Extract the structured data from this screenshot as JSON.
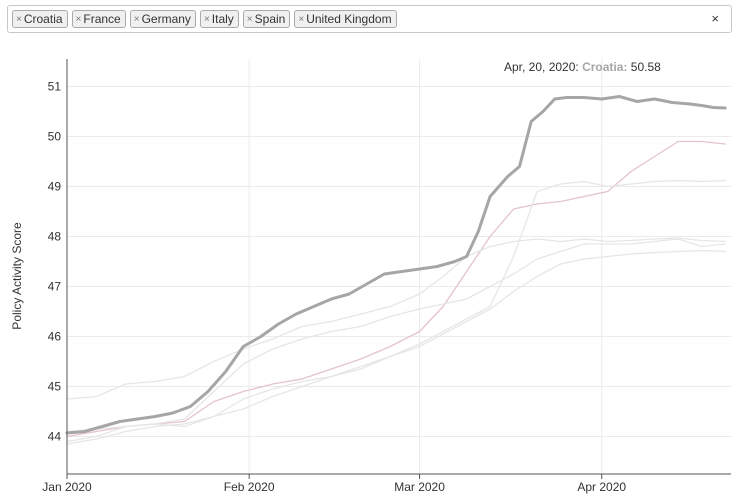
{
  "selector": {
    "tags": [
      "Croatia",
      "France",
      "Germany",
      "Italy",
      "Spain",
      "United Kingdom"
    ],
    "remove_glyph": "×",
    "clear_glyph": "×"
  },
  "tooltip": {
    "date": "Apr, 20, 2020:",
    "country": "Croatia",
    "separator": ":",
    "value": "50.58"
  },
  "chart_data": {
    "type": "line",
    "xlabel": "",
    "ylabel": "Policy Activity Score",
    "x_tick_labels": [
      "Jan 2020",
      "Feb 2020",
      "Mar 2020",
      "Apr 2020"
    ],
    "x_ticks": [
      "2020-01-01",
      "2020-02-01",
      "2020-03-01",
      "2020-04-01"
    ],
    "y_ticks": [
      44,
      45,
      46,
      47,
      48,
      49,
      50,
      51
    ],
    "xlim": [
      "2020-01-01",
      "2020-04-23"
    ],
    "ylim": [
      43.25,
      51.55
    ],
    "grid": true,
    "highlight_color": "#a6a6a6",
    "series": [
      {
        "name": "Croatia",
        "color": "#a6a6a6",
        "highlighted": true,
        "points": [
          [
            "2020-01-01",
            44.07
          ],
          [
            "2020-01-04",
            44.1
          ],
          [
            "2020-01-07",
            44.2
          ],
          [
            "2020-01-10",
            44.3
          ],
          [
            "2020-01-13",
            44.35
          ],
          [
            "2020-01-16",
            44.4
          ],
          [
            "2020-01-19",
            44.47
          ],
          [
            "2020-01-22",
            44.6
          ],
          [
            "2020-01-25",
            44.9
          ],
          [
            "2020-01-28",
            45.3
          ],
          [
            "2020-01-31",
            45.8
          ],
          [
            "2020-02-03",
            46.0
          ],
          [
            "2020-02-06",
            46.25
          ],
          [
            "2020-02-09",
            46.45
          ],
          [
            "2020-02-12",
            46.6
          ],
          [
            "2020-02-15",
            46.75
          ],
          [
            "2020-02-18",
            46.85
          ],
          [
            "2020-02-21",
            47.05
          ],
          [
            "2020-02-24",
            47.25
          ],
          [
            "2020-02-27",
            47.3
          ],
          [
            "2020-03-01",
            47.35
          ],
          [
            "2020-03-04",
            47.4
          ],
          [
            "2020-03-07",
            47.5
          ],
          [
            "2020-03-09",
            47.6
          ],
          [
            "2020-03-11",
            48.1
          ],
          [
            "2020-03-13",
            48.8
          ],
          [
            "2020-03-16",
            49.2
          ],
          [
            "2020-03-18",
            49.4
          ],
          [
            "2020-03-20",
            50.3
          ],
          [
            "2020-03-22",
            50.5
          ],
          [
            "2020-03-24",
            50.75
          ],
          [
            "2020-03-26",
            50.78
          ],
          [
            "2020-03-29",
            50.78
          ],
          [
            "2020-04-01",
            50.75
          ],
          [
            "2020-04-04",
            50.8
          ],
          [
            "2020-04-07",
            50.7
          ],
          [
            "2020-04-10",
            50.75
          ],
          [
            "2020-04-13",
            50.68
          ],
          [
            "2020-04-16",
            50.65
          ],
          [
            "2020-04-18",
            50.62
          ],
          [
            "2020-04-20",
            50.58
          ],
          [
            "2020-04-22",
            50.57
          ]
        ]
      },
      {
        "name": "France",
        "color": "#e3c3cc",
        "highlighted": false,
        "points": [
          [
            "2020-01-01",
            44.0
          ],
          [
            "2020-01-06",
            44.1
          ],
          [
            "2020-01-11",
            44.2
          ],
          [
            "2020-01-16",
            44.25
          ],
          [
            "2020-01-21",
            44.3
          ],
          [
            "2020-01-26",
            44.7
          ],
          [
            "2020-01-31",
            44.9
          ],
          [
            "2020-02-05",
            45.05
          ],
          [
            "2020-02-10",
            45.15
          ],
          [
            "2020-02-15",
            45.35
          ],
          [
            "2020-02-20",
            45.55
          ],
          [
            "2020-02-25",
            45.8
          ],
          [
            "2020-03-01",
            46.1
          ],
          [
            "2020-03-05",
            46.6
          ],
          [
            "2020-03-09",
            47.3
          ],
          [
            "2020-03-13",
            48.0
          ],
          [
            "2020-03-17",
            48.55
          ],
          [
            "2020-03-21",
            48.65
          ],
          [
            "2020-03-25",
            48.7
          ],
          [
            "2020-03-29",
            48.8
          ],
          [
            "2020-04-02",
            48.9
          ],
          [
            "2020-04-06",
            49.3
          ],
          [
            "2020-04-10",
            49.6
          ],
          [
            "2020-04-14",
            49.9
          ],
          [
            "2020-04-18",
            49.9
          ],
          [
            "2020-04-22",
            49.85
          ]
        ]
      },
      {
        "name": "Germany",
        "color": "#e6e6e6",
        "highlighted": false,
        "points": [
          [
            "2020-01-01",
            44.75
          ],
          [
            "2020-01-06",
            44.8
          ],
          [
            "2020-01-11",
            45.05
          ],
          [
            "2020-01-16",
            45.1
          ],
          [
            "2020-01-21",
            45.2
          ],
          [
            "2020-01-26",
            45.5
          ],
          [
            "2020-01-31",
            45.75
          ],
          [
            "2020-02-05",
            45.95
          ],
          [
            "2020-02-10",
            46.2
          ],
          [
            "2020-02-15",
            46.3
          ],
          [
            "2020-02-20",
            46.45
          ],
          [
            "2020-02-25",
            46.6
          ],
          [
            "2020-03-01",
            46.85
          ],
          [
            "2020-03-05",
            47.2
          ],
          [
            "2020-03-09",
            47.6
          ],
          [
            "2020-03-13",
            47.8
          ],
          [
            "2020-03-17",
            47.9
          ],
          [
            "2020-03-21",
            47.95
          ],
          [
            "2020-03-25",
            47.9
          ],
          [
            "2020-03-29",
            47.95
          ],
          [
            "2020-04-02",
            47.9
          ],
          [
            "2020-04-06",
            47.92
          ],
          [
            "2020-04-10",
            47.95
          ],
          [
            "2020-04-14",
            47.97
          ],
          [
            "2020-04-18",
            47.92
          ],
          [
            "2020-04-22",
            47.9
          ]
        ]
      },
      {
        "name": "Italy",
        "color": "#e6e6e6",
        "highlighted": false,
        "points": [
          [
            "2020-01-01",
            43.9
          ],
          [
            "2020-01-06",
            44.0
          ],
          [
            "2020-01-11",
            44.2
          ],
          [
            "2020-01-16",
            44.25
          ],
          [
            "2020-01-21",
            44.2
          ],
          [
            "2020-01-26",
            44.4
          ],
          [
            "2020-01-31",
            44.75
          ],
          [
            "2020-02-05",
            44.95
          ],
          [
            "2020-02-10",
            45.1
          ],
          [
            "2020-02-15",
            45.2
          ],
          [
            "2020-02-20",
            45.35
          ],
          [
            "2020-02-25",
            45.6
          ],
          [
            "2020-03-01",
            45.85
          ],
          [
            "2020-03-05",
            46.1
          ],
          [
            "2020-03-09",
            46.35
          ],
          [
            "2020-03-13",
            46.6
          ],
          [
            "2020-03-17",
            47.6
          ],
          [
            "2020-03-21",
            48.9
          ],
          [
            "2020-03-25",
            49.05
          ],
          [
            "2020-03-29",
            49.1
          ],
          [
            "2020-04-02",
            49.0
          ],
          [
            "2020-04-06",
            49.05
          ],
          [
            "2020-04-10",
            49.1
          ],
          [
            "2020-04-14",
            49.12
          ],
          [
            "2020-04-18",
            49.1
          ],
          [
            "2020-04-22",
            49.12
          ]
        ]
      },
      {
        "name": "Spain",
        "color": "#e6e6e6",
        "highlighted": false,
        "points": [
          [
            "2020-01-01",
            44.1
          ],
          [
            "2020-01-06",
            44.15
          ],
          [
            "2020-01-11",
            44.2
          ],
          [
            "2020-01-16",
            44.25
          ],
          [
            "2020-01-21",
            44.35
          ],
          [
            "2020-01-26",
            44.9
          ],
          [
            "2020-01-31",
            45.45
          ],
          [
            "2020-02-05",
            45.75
          ],
          [
            "2020-02-10",
            45.95
          ],
          [
            "2020-02-15",
            46.1
          ],
          [
            "2020-02-20",
            46.2
          ],
          [
            "2020-02-25",
            46.4
          ],
          [
            "2020-03-01",
            46.55
          ],
          [
            "2020-03-05",
            46.65
          ],
          [
            "2020-03-09",
            46.75
          ],
          [
            "2020-03-13",
            47.0
          ],
          [
            "2020-03-17",
            47.25
          ],
          [
            "2020-03-21",
            47.55
          ],
          [
            "2020-03-25",
            47.7
          ],
          [
            "2020-03-29",
            47.85
          ],
          [
            "2020-04-02",
            47.85
          ],
          [
            "2020-04-06",
            47.85
          ],
          [
            "2020-04-10",
            47.9
          ],
          [
            "2020-04-14",
            47.95
          ],
          [
            "2020-04-18",
            47.8
          ],
          [
            "2020-04-22",
            47.85
          ]
        ]
      },
      {
        "name": "United Kingdom",
        "color": "#e6e6e6",
        "highlighted": false,
        "points": [
          [
            "2020-01-01",
            43.85
          ],
          [
            "2020-01-06",
            43.95
          ],
          [
            "2020-01-11",
            44.1
          ],
          [
            "2020-01-16",
            44.2
          ],
          [
            "2020-01-21",
            44.25
          ],
          [
            "2020-01-26",
            44.4
          ],
          [
            "2020-01-31",
            44.55
          ],
          [
            "2020-02-05",
            44.8
          ],
          [
            "2020-02-10",
            45.0
          ],
          [
            "2020-02-15",
            45.2
          ],
          [
            "2020-02-20",
            45.4
          ],
          [
            "2020-02-25",
            45.6
          ],
          [
            "2020-03-01",
            45.8
          ],
          [
            "2020-03-05",
            46.05
          ],
          [
            "2020-03-09",
            46.3
          ],
          [
            "2020-03-13",
            46.55
          ],
          [
            "2020-03-17",
            46.9
          ],
          [
            "2020-03-21",
            47.2
          ],
          [
            "2020-03-25",
            47.45
          ],
          [
            "2020-03-29",
            47.55
          ],
          [
            "2020-04-02",
            47.6
          ],
          [
            "2020-04-06",
            47.65
          ],
          [
            "2020-04-10",
            47.68
          ],
          [
            "2020-04-14",
            47.7
          ],
          [
            "2020-04-18",
            47.72
          ],
          [
            "2020-04-22",
            47.7
          ]
        ]
      }
    ]
  }
}
